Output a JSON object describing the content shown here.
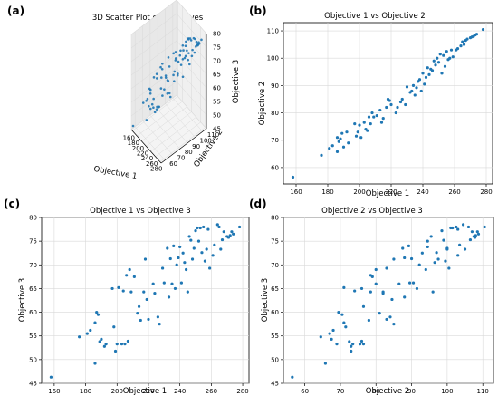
{
  "figure": {
    "panel_labels": [
      "(a)",
      "(b)",
      "(c)",
      "(d)"
    ]
  },
  "colors": {
    "point": "#1f77b4",
    "pane_xz": "#f0f0f0",
    "pane_yz": "#e8e8e8",
    "pane_floor": "#f4f4f4",
    "grid": "#d9d9d9",
    "axis": "#000000"
  },
  "chart_data": [
    {
      "type": "scatter3d",
      "title": "3D Scatter Plot of Objectives",
      "xlabel": "Objective 1",
      "ylabel": "Objective 2",
      "zlabel": "Objective 3",
      "xlim": [
        155,
        285
      ],
      "ylim": [
        55,
        115
      ],
      "zlim": [
        45,
        80
      ],
      "xticks": [
        160,
        180,
        200,
        220,
        240,
        260,
        280
      ],
      "yticks": [
        60,
        70,
        80,
        90,
        100,
        110
      ],
      "zticks": [
        45,
        50,
        55,
        60,
        65,
        70,
        75,
        80
      ],
      "grid": true,
      "points": [
        [
          158,
          56.5,
          46.3
        ],
        [
          176,
          64.5,
          54.8
        ],
        [
          181,
          67,
          55.5
        ],
        [
          183,
          68,
          56.2
        ],
        [
          186,
          65.8,
          49.2
        ],
        [
          186,
          71,
          57.8
        ],
        [
          187,
          69.5,
          60
        ],
        [
          188,
          70.5,
          59.5
        ],
        [
          189,
          72.5,
          53.8
        ],
        [
          190,
          67.5,
          54.3
        ],
        [
          192,
          73,
          52.8
        ],
        [
          193,
          69,
          53.3
        ],
        [
          197,
          76,
          65
        ],
        [
          198,
          71.5,
          56.9
        ],
        [
          199,
          73,
          51.8
        ],
        [
          200,
          75.5,
          53.3
        ],
        [
          201,
          71,
          65.2
        ],
        [
          203,
          76.5,
          53.3
        ],
        [
          204,
          74,
          64.5
        ],
        [
          205,
          73.5,
          53.3
        ],
        [
          206,
          78.5,
          67.8
        ],
        [
          207,
          76,
          53.9
        ],
        [
          208,
          80,
          69
        ],
        [
          209,
          78.5,
          64.3
        ],
        [
          211,
          79,
          67.5
        ],
        [
          213,
          81,
          59.8
        ],
        [
          214,
          76.5,
          61.2
        ],
        [
          215,
          78,
          58.3
        ],
        [
          217,
          82,
          64.3
        ],
        [
          218,
          85,
          71.2
        ],
        [
          219,
          84.5,
          62.7
        ],
        [
          220,
          83,
          58.5
        ],
        [
          223,
          80,
          66
        ],
        [
          224,
          82,
          64
        ],
        [
          226,
          84,
          59
        ],
        [
          227,
          85,
          57.5
        ],
        [
          229,
          83,
          69.3
        ],
        [
          230,
          89.5,
          66.2
        ],
        [
          232,
          87.5,
          73.5
        ],
        [
          233,
          88,
          63.2
        ],
        [
          234,
          90,
          71.3
        ],
        [
          235,
          86.5,
          66
        ],
        [
          236,
          89.2,
          74
        ],
        [
          237,
          91.5,
          65
        ],
        [
          238,
          92.2,
          70
        ],
        [
          239,
          88,
          71.5
        ],
        [
          240,
          94.5,
          73.8
        ],
        [
          241,
          90.5,
          66.2
        ],
        [
          242,
          93,
          72.5
        ],
        [
          243,
          96.5,
          70.5
        ],
        [
          244,
          94,
          69
        ],
        [
          245,
          96,
          64.3
        ],
        [
          246,
          95.5,
          76
        ],
        [
          247,
          99,
          75.2
        ],
        [
          248,
          97.5,
          71.2
        ],
        [
          249,
          100,
          73.5
        ],
        [
          250,
          98.5,
          77.2
        ],
        [
          251,
          101.5,
          77.8
        ],
        [
          252,
          94.5,
          75
        ],
        [
          253,
          101,
          77.8
        ],
        [
          254,
          97,
          72.6
        ],
        [
          255,
          102.5,
          78
        ],
        [
          256,
          99.5,
          70.8
        ],
        [
          257,
          100,
          73.3
        ],
        [
          258,
          103,
          77.5
        ],
        [
          259,
          100.5,
          69.3
        ],
        [
          261,
          103,
          72
        ],
        [
          262,
          103.5,
          74.2
        ],
        [
          264,
          104.5,
          78.5
        ],
        [
          265,
          106,
          78
        ],
        [
          266,
          105,
          73.3
        ],
        [
          267,
          106.5,
          75.3
        ],
        [
          268,
          107,
          77
        ],
        [
          270,
          107.5,
          76
        ],
        [
          271,
          107.8,
          75.8
        ],
        [
          272,
          108,
          76.2
        ],
        [
          273,
          108.5,
          77
        ],
        [
          274,
          108.8,
          76.5
        ],
        [
          278,
          110.5,
          78
        ]
      ]
    },
    {
      "type": "scatter",
      "title": "Objective 1 vs Objective 2",
      "xlabel": "Objective 1",
      "ylabel": "Objective 2",
      "x_series": 0,
      "y_series": 1,
      "xlim": [
        152,
        284
      ],
      "ylim": [
        54,
        113
      ],
      "xticks": [
        160,
        180,
        200,
        220,
        240,
        260,
        280
      ],
      "yticks": [
        60,
        70,
        80,
        90,
        100,
        110
      ],
      "grid": true
    },
    {
      "type": "scatter",
      "title": "Objective 1 vs Objective 3",
      "xlabel": "Objective 1",
      "ylabel": "Objective 3",
      "x_series": 0,
      "y_series": 2,
      "xlim": [
        152,
        284
      ],
      "ylim": [
        45,
        80
      ],
      "xticks": [
        160,
        180,
        200,
        220,
        240,
        260,
        280
      ],
      "yticks": [
        45,
        50,
        55,
        60,
        65,
        70,
        75,
        80
      ],
      "grid": true
    },
    {
      "type": "scatter",
      "title": "Objective 2 vs Objective 3",
      "xlabel": "Objective 2",
      "ylabel": "Objective 3",
      "x_series": 1,
      "y_series": 2,
      "xlim": [
        54,
        113
      ],
      "ylim": [
        45,
        80
      ],
      "xticks": [
        60,
        70,
        80,
        90,
        100,
        110
      ],
      "yticks": [
        45,
        50,
        55,
        60,
        65,
        70,
        75,
        80
      ],
      "grid": true
    }
  ]
}
